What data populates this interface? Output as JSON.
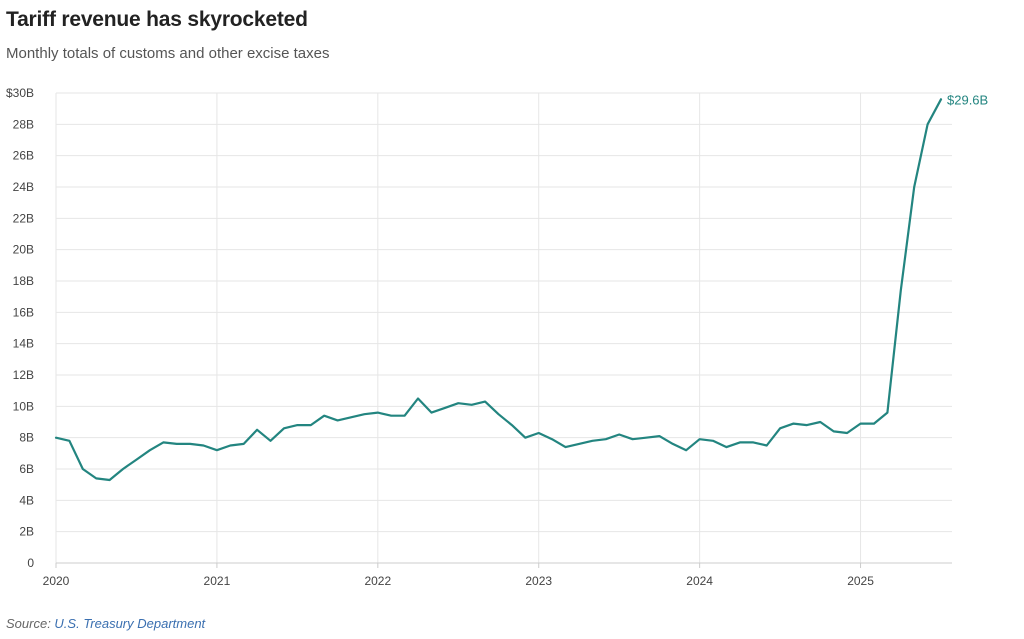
{
  "header": {
    "title": "Tariff revenue has skyrocketed",
    "subtitle": "Monthly totals of customs and other excise taxes"
  },
  "footer": {
    "source_prefix": "Source: ",
    "source_link": "U.S. Treasury Department"
  },
  "colors": {
    "line": "#238580",
    "grid": "#e6e6e6",
    "axis": "#cccccc"
  },
  "chart_data": {
    "type": "line",
    "title": "Tariff revenue has skyrocketed",
    "subtitle": "Monthly totals of customs and other excise taxes",
    "xlabel": "",
    "ylabel": "",
    "grid": true,
    "ylim": [
      0,
      30
    ],
    "xlim": [
      "2020-01",
      "2025-07"
    ],
    "y_ticks": [
      0,
      2,
      4,
      6,
      8,
      10,
      12,
      14,
      16,
      18,
      20,
      22,
      24,
      26,
      28,
      30
    ],
    "y_tick_labels": [
      "0",
      "2B",
      "4B",
      "6B",
      "8B",
      "10B",
      "12B",
      "14B",
      "16B",
      "18B",
      "20B",
      "22B",
      "24B",
      "26B",
      "28B",
      "$30B"
    ],
    "x_ticks": [
      "2020-01",
      "2021-01",
      "2022-01",
      "2023-01",
      "2024-01",
      "2025-01"
    ],
    "x_tick_labels": [
      "2020",
      "2021",
      "2022",
      "2023",
      "2024",
      "2025"
    ],
    "end_label": "$29.6B",
    "series": [
      {
        "name": "",
        "x": [
          "2020-01",
          "2020-02",
          "2020-03",
          "2020-04",
          "2020-05",
          "2020-06",
          "2020-07",
          "2020-08",
          "2020-09",
          "2020-10",
          "2020-11",
          "2020-12",
          "2021-01",
          "2021-02",
          "2021-03",
          "2021-04",
          "2021-05",
          "2021-06",
          "2021-07",
          "2021-08",
          "2021-09",
          "2021-10",
          "2021-11",
          "2021-12",
          "2022-01",
          "2022-02",
          "2022-03",
          "2022-04",
          "2022-05",
          "2022-06",
          "2022-07",
          "2022-08",
          "2022-09",
          "2022-10",
          "2022-11",
          "2022-12",
          "2023-01",
          "2023-02",
          "2023-03",
          "2023-04",
          "2023-05",
          "2023-06",
          "2023-07",
          "2023-08",
          "2023-09",
          "2023-10",
          "2023-11",
          "2023-12",
          "2024-01",
          "2024-02",
          "2024-03",
          "2024-04",
          "2024-05",
          "2024-06",
          "2024-07",
          "2024-08",
          "2024-09",
          "2024-10",
          "2024-11",
          "2024-12",
          "2025-01",
          "2025-02",
          "2025-03",
          "2025-04",
          "2025-05",
          "2025-06",
          "2025-07"
        ],
        "values": [
          8.0,
          7.8,
          6.0,
          5.4,
          5.3,
          6.0,
          6.6,
          7.2,
          7.7,
          7.6,
          7.6,
          7.5,
          7.2,
          7.5,
          7.6,
          8.5,
          7.8,
          8.6,
          8.8,
          8.8,
          9.4,
          9.1,
          9.3,
          9.5,
          9.6,
          9.4,
          9.4,
          10.5,
          9.6,
          9.9,
          10.2,
          10.1,
          10.3,
          9.5,
          8.8,
          8.0,
          8.3,
          7.9,
          7.4,
          7.6,
          7.8,
          7.9,
          8.2,
          7.9,
          8.0,
          8.1,
          7.6,
          7.2,
          7.9,
          7.8,
          7.4,
          7.7,
          7.7,
          7.5,
          8.6,
          8.9,
          8.8,
          9.0,
          8.4,
          8.3,
          8.9,
          8.9,
          9.6,
          17.4,
          24.0,
          28.0,
          29.6
        ]
      }
    ]
  }
}
